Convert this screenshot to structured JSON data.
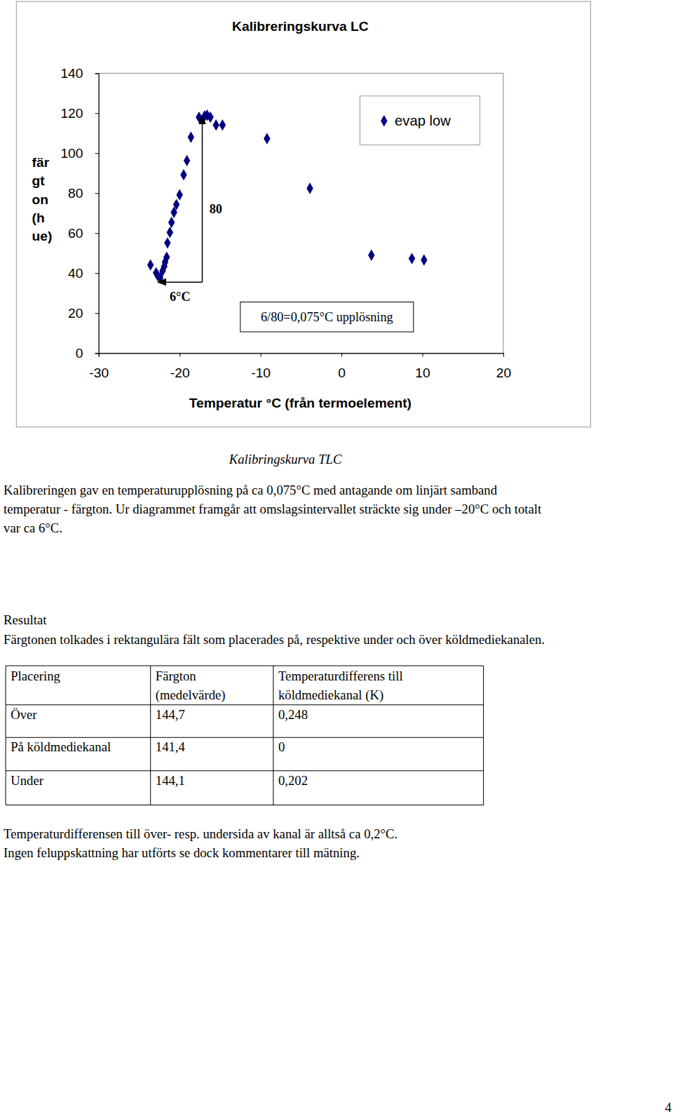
{
  "chart_data": {
    "type": "scatter",
    "title": "Kalibreringskurva LC",
    "xlabel": "Temperatur °C (från termoelement)",
    "ylabel": [
      "fär",
      "gt",
      "on",
      "(h",
      "ue)"
    ],
    "x": [
      -23.6,
      -22.9,
      -22.7,
      -22.4,
      -22.1,
      -21.9,
      -21.8,
      -21.6,
      -21.5,
      -21.2,
      -21.0,
      -20.7,
      -20.4,
      -20.0,
      -19.5,
      -19.1,
      -18.6,
      -17.6,
      -16.9,
      -16.6,
      -16.2,
      -15.5,
      -14.7,
      -9.2,
      -3.9,
      3.7,
      8.7,
      10.2
    ],
    "series": [
      {
        "name": "evap low",
        "color": "#000080",
        "marker": "diamond",
        "values": [
          44.1,
          40.2,
          38.7,
          37.7,
          41.2,
          43.4,
          45.5,
          48.0,
          55.1,
          60.4,
          65.4,
          70.4,
          74.3,
          79.2,
          89.2,
          96.3,
          108.0,
          118.0,
          118.7,
          119.0,
          118.0,
          114.1,
          114.1,
          107.3,
          82.4,
          49.0,
          47.3,
          46.6
        ]
      }
    ],
    "xlim": [
      -30,
      20
    ],
    "ylim": [
      0,
      140
    ],
    "xticks": [
      -30,
      -20,
      -10,
      0,
      10,
      20
    ],
    "yticks": [
      0,
      20,
      40,
      60,
      80,
      100,
      120,
      140
    ],
    "grid": false,
    "legend": "top-right",
    "annotations": [
      {
        "text": "6°C",
        "x": [
          -17.2,
          -22.7
        ],
        "y": 35.5
      },
      {
        "text": "80",
        "x": -17.2,
        "y": [
          35.5,
          118.7
        ]
      },
      {
        "text": "6/80=0,075°C upplösning",
        "x": -1.8,
        "y": 18.1
      }
    ]
  },
  "document": {
    "caption": "Kalibringskurva TLC",
    "paragraph": [
      "Kalibreringen gav en temperaturupplösning på  ca 0,075°C med antagande om linjärt samband",
      "temperatur - färgton. Ur diagrammet framgår att omslagsintervallet sträckte sig under –20°C och totalt",
      "var ca 6°C."
    ],
    "heading": "Resultat",
    "intro": "Färgtonen tolkades i rektangulära fält som placerades på, respektive under och över köldmediekanalen.",
    "table": {
      "header": [
        [
          "Placering"
        ],
        [
          "Färgton",
          "(medelvärde)"
        ],
        [
          "Temperaturdifferens till",
          "köldmediekanal (K)"
        ]
      ],
      "rows": [
        [
          "Över",
          "144,7",
          "0,248"
        ],
        [
          "På köldmediekanal",
          "141,4",
          "0"
        ],
        [
          "Under",
          "144,1",
          "0,202"
        ]
      ]
    },
    "conclusion": [
      "Temperaturdifferensen till över- resp. undersida av kanal är alltså ca 0,2°C.",
      "Ingen feluppskattning har utförts se dock kommentarer till mätning."
    ],
    "page_number": "4"
  }
}
